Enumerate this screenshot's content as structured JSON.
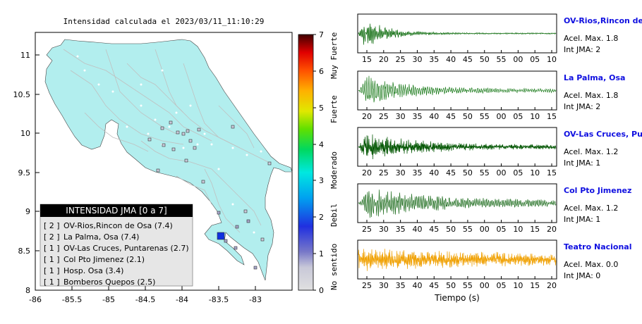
{
  "map": {
    "title": "Intensidad calculada el 2023/03/11_11:10:29",
    "lon_ticks": [
      "-86",
      "-85.5",
      "-85",
      "-84.5",
      "-84",
      "-83.5",
      "-83"
    ],
    "lat_ticks": [
      "11",
      "10.5",
      "10",
      "9.5",
      "9",
      "8.5",
      "8"
    ],
    "colorbar": {
      "ticks": [
        "0",
        "1",
        "2",
        "3",
        "4",
        "5",
        "6",
        "7"
      ],
      "labels": [
        "No sentido",
        "Debil",
        "Moderado",
        "Fuerte",
        "Muy Fuerte"
      ]
    },
    "legend": {
      "title": "INTENSIDAD JMA [0 a 7]",
      "items": [
        {
          "jma": "[ 2 ]",
          "text": "OV-Rios,Rincon de Osa (7.4)"
        },
        {
          "jma": "[ 2 ]",
          "text": "La Palma, Osa (7.4)"
        },
        {
          "jma": "[ 1 ]",
          "text": "OV-Las Cruces, Puntarenas (2.7)"
        },
        {
          "jma": "[ 1 ]",
          "text": "Col Pto Jimenez (2.1)"
        },
        {
          "jma": "[ 1 ]",
          "text": "Hosp. Osa (3.4)"
        },
        {
          "jma": "[ 1 ]",
          "text": "Bomberos Quepos (2.5)"
        }
      ]
    },
    "colors": {
      "land": "#b2eeee",
      "station_active": "#1030e0",
      "station_faint": "#a8a8cc",
      "station_light": "#ccccdd"
    }
  },
  "seismograms": {
    "xlabel": "Tiempo (s)",
    "panels": [
      {
        "name": "OV-Rios,Rincon de Osa",
        "acel": "Acel. Max. 1.8",
        "jma": "Int JMA: 2",
        "ticks": [
          "15",
          "20",
          "25",
          "30",
          "35",
          "40",
          "45",
          "50",
          "55",
          "00",
          "05",
          "10"
        ],
        "color": "#006400"
      },
      {
        "name": "La Palma, Osa",
        "acel": "Acel. Max. 1.8",
        "jma": "Int JMA: 2",
        "ticks": [
          "20",
          "25",
          "30",
          "35",
          "40",
          "45",
          "50",
          "55",
          "00",
          "05",
          "10",
          "15"
        ],
        "color": "#1a7a1a"
      },
      {
        "name": "OV-Las Cruces, Puntarenas",
        "acel": "Acel. Max. 1.2",
        "jma": "Int JMA: 1",
        "ticks": [
          "20",
          "25",
          "30",
          "35",
          "40",
          "45",
          "50",
          "55",
          "00",
          "05",
          "10",
          "15"
        ],
        "color": "#005500"
      },
      {
        "name": "Col Pto Jimenez",
        "acel": "Acel. Max. 1.2",
        "jma": "Int JMA: 1",
        "ticks": [
          "25",
          "30",
          "35",
          "40",
          "45",
          "50",
          "55",
          "00",
          "05",
          "10",
          "15",
          "20"
        ],
        "color": "#1a6a1a"
      },
      {
        "name": "Teatro Nacional",
        "acel": "Acel. Max. 0.0",
        "jma": "Int JMA: 0",
        "ticks": [
          "25",
          "30",
          "35",
          "40",
          "45",
          "50",
          "55",
          "00",
          "05",
          "10",
          "15",
          "20"
        ],
        "color": "#f0a000"
      }
    ]
  }
}
